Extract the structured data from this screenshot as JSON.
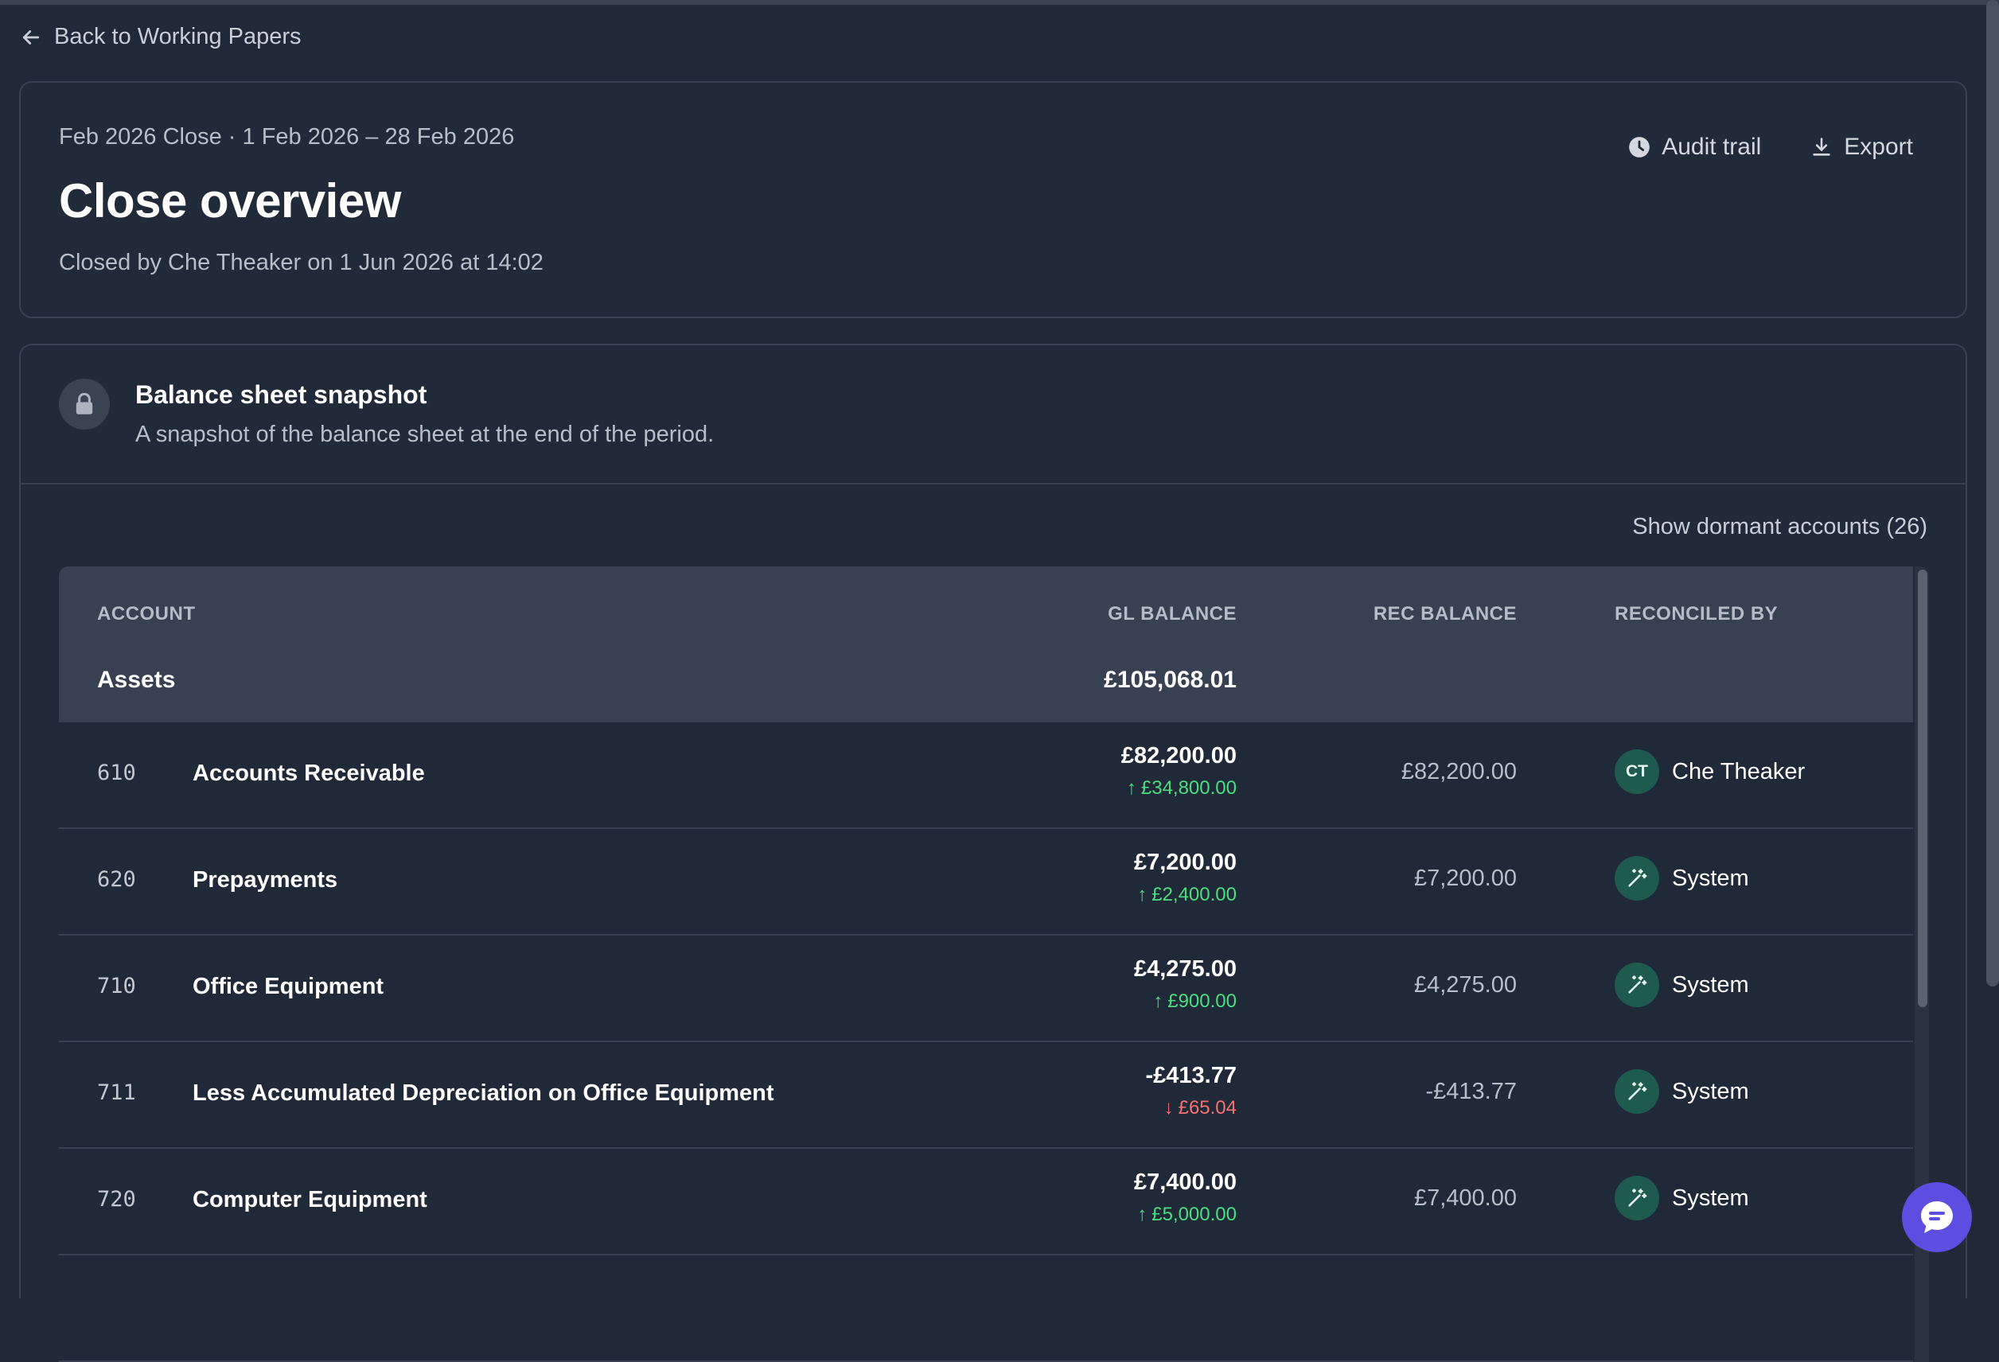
{
  "nav": {
    "back_label": "Back to Working Papers"
  },
  "header": {
    "period": "Feb 2026 Close · 1 Feb 2026 – 28 Feb 2026",
    "title": "Close overview",
    "closed_by": "Closed by Che Theaker on 1 Jun 2026 at 14:02",
    "audit_label": "Audit trail",
    "export_label": "Export"
  },
  "snapshot": {
    "title": "Balance sheet snapshot",
    "subtitle": "A snapshot of the balance sheet at the end of the period.",
    "dormant_label": "Show dormant accounts (26)"
  },
  "table": {
    "columns": [
      "ACCOUNT",
      "GL BALANCE",
      "REC BALANCE",
      "RECONCILED BY"
    ],
    "group": {
      "label": "Assets",
      "total": "£105,068.01"
    },
    "rows": [
      {
        "code": "610",
        "name": "Accounts Receivable",
        "gl": "£82,200.00",
        "delta": "£34,800.00",
        "direction": "up",
        "rec": "£82,200.00",
        "by": "Che Theaker",
        "initials": "CT",
        "by_icon": "user-initials"
      },
      {
        "code": "620",
        "name": "Prepayments",
        "gl": "£7,200.00",
        "delta": "£2,400.00",
        "direction": "up",
        "rec": "£7,200.00",
        "by": "System",
        "initials": "",
        "by_icon": "magic-wand-icon"
      },
      {
        "code": "710",
        "name": "Office Equipment",
        "gl": "£4,275.00",
        "delta": "£900.00",
        "direction": "up",
        "rec": "£4,275.00",
        "by": "System",
        "initials": "",
        "by_icon": "magic-wand-icon"
      },
      {
        "code": "711",
        "name": "Less Accumulated Depreciation on Office Equipment",
        "gl": "-£413.77",
        "delta": "£65.04",
        "direction": "down",
        "rec": "-£413.77",
        "by": "System",
        "initials": "",
        "by_icon": "magic-wand-icon"
      },
      {
        "code": "720",
        "name": "Computer Equipment",
        "gl": "£7,400.00",
        "delta": "£5,000.00",
        "direction": "up",
        "rec": "£7,400.00",
        "by": "System",
        "initials": "",
        "by_icon": "magic-wand-icon"
      }
    ]
  },
  "colors": {
    "background": "#202938",
    "header_row": "#374151",
    "positive": "#4ade80",
    "negative": "#f87171",
    "avatar": "#1f5a4f",
    "chat": "#5b4ee0"
  }
}
